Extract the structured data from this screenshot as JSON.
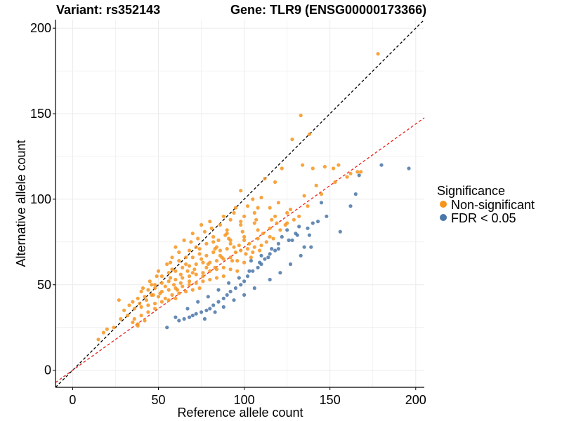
{
  "titles": {
    "variant": "Variant: rs352143",
    "gene": "Gene: TLR9 (ENSG00000173366)"
  },
  "colors": {
    "nonsig": "#F7941D",
    "sig": "#4A76A8",
    "identity_line": "#000000",
    "fit_line": "#E8231E",
    "grid": "#EBEBEB"
  },
  "chart_data": {
    "type": "scatter",
    "xlabel": "Reference allele count",
    "ylabel": "Alternative allele count",
    "xlim": [
      -10,
      205
    ],
    "ylim": [
      -10,
      205
    ],
    "xticks": [
      0,
      50,
      100,
      150,
      200
    ],
    "yticks": [
      0,
      50,
      100,
      150,
      200
    ],
    "grid": true,
    "legend": {
      "title": "Significance",
      "position": "right",
      "entries": [
        "Non-significant",
        "FDR < 0.05"
      ]
    },
    "reference_lines": [
      {
        "name": "identity",
        "slope": 1.0,
        "intercept": 0,
        "style": "dashed",
        "color": "#000000"
      },
      {
        "name": "fit",
        "slope": 0.72,
        "intercept": 0,
        "style": "dashed",
        "color": "#E8231E"
      }
    ],
    "series": [
      {
        "name": "Non-significant",
        "color": "#F7941D",
        "points": [
          [
            178,
            185
          ],
          [
            133,
            149
          ],
          [
            138,
            138
          ],
          [
            128,
            135
          ],
          [
            134,
            120
          ],
          [
            140,
            118
          ],
          [
            147,
            119
          ],
          [
            152,
            118
          ],
          [
            155,
            120
          ],
          [
            162,
            115
          ],
          [
            166,
            116
          ],
          [
            122,
            118
          ],
          [
            118,
            110
          ],
          [
            112,
            112
          ],
          [
            105,
            100
          ],
          [
            98,
            105
          ],
          [
            108,
            95
          ],
          [
            120,
            98
          ],
          [
            125,
            92
          ],
          [
            135,
            102
          ],
          [
            142,
            108
          ],
          [
            118,
            90
          ],
          [
            100,
            90
          ],
          [
            92,
            88
          ],
          [
            95,
            95
          ],
          [
            88,
            90
          ],
          [
            80,
            87
          ],
          [
            75,
            85
          ],
          [
            70,
            80
          ],
          [
            82,
            78
          ],
          [
            90,
            82
          ],
          [
            98,
            85
          ],
          [
            106,
            86
          ],
          [
            115,
            83
          ],
          [
            124,
            85
          ],
          [
            132,
            90
          ],
          [
            60,
            72
          ],
          [
            65,
            76
          ],
          [
            68,
            70
          ],
          [
            72,
            72
          ],
          [
            78,
            74
          ],
          [
            85,
            76
          ],
          [
            92,
            76
          ],
          [
            100,
            78
          ],
          [
            108,
            77
          ],
          [
            115,
            78
          ],
          [
            55,
            62
          ],
          [
            58,
            66
          ],
          [
            62,
            64
          ],
          [
            66,
            66
          ],
          [
            70,
            66
          ],
          [
            74,
            68
          ],
          [
            78,
            67
          ],
          [
            82,
            69
          ],
          [
            86,
            70
          ],
          [
            90,
            71
          ],
          [
            94,
            72
          ],
          [
            98,
            70
          ],
          [
            102,
            71
          ],
          [
            106,
            72
          ],
          [
            110,
            73
          ],
          [
            50,
            58
          ],
          [
            52,
            55
          ],
          [
            56,
            57
          ],
          [
            60,
            58
          ],
          [
            64,
            60
          ],
          [
            68,
            61
          ],
          [
            72,
            62
          ],
          [
            76,
            63
          ],
          [
            80,
            63
          ],
          [
            84,
            64
          ],
          [
            88,
            65
          ],
          [
            92,
            66
          ],
          [
            96,
            64
          ],
          [
            100,
            63
          ],
          [
            104,
            66
          ],
          [
            45,
            52
          ],
          [
            48,
            50
          ],
          [
            52,
            51
          ],
          [
            56,
            52
          ],
          [
            60,
            53
          ],
          [
            64,
            54
          ],
          [
            68,
            55
          ],
          [
            72,
            56
          ],
          [
            76,
            57
          ],
          [
            80,
            58
          ],
          [
            84,
            59
          ],
          [
            88,
            60
          ],
          [
            92,
            59
          ],
          [
            96,
            58
          ],
          [
            40,
            46
          ],
          [
            44,
            47
          ],
          [
            48,
            48
          ],
          [
            52,
            46
          ],
          [
            56,
            47
          ],
          [
            60,
            48
          ],
          [
            64,
            49
          ],
          [
            68,
            50
          ],
          [
            72,
            51
          ],
          [
            76,
            52
          ],
          [
            80,
            53
          ],
          [
            84,
            54
          ],
          [
            88,
            55
          ],
          [
            35,
            40
          ],
          [
            38,
            42
          ],
          [
            42,
            43
          ],
          [
            46,
            44
          ],
          [
            50,
            43
          ],
          [
            54,
            42
          ],
          [
            58,
            44
          ],
          [
            62,
            45
          ],
          [
            66,
            46
          ],
          [
            70,
            47
          ],
          [
            74,
            48
          ],
          [
            30,
            35
          ],
          [
            33,
            38
          ],
          [
            36,
            36
          ],
          [
            40,
            37
          ],
          [
            44,
            38
          ],
          [
            48,
            39
          ],
          [
            52,
            40
          ],
          [
            56,
            41
          ],
          [
            60,
            42
          ],
          [
            27,
            41
          ],
          [
            28,
            30
          ],
          [
            32,
            32
          ],
          [
            36,
            30
          ],
          [
            40,
            32
          ],
          [
            44,
            34
          ],
          [
            48,
            36
          ],
          [
            35,
            28
          ],
          [
            38,
            27
          ],
          [
            42,
            29
          ],
          [
            38,
            26
          ],
          [
            24,
            25
          ],
          [
            20,
            24
          ],
          [
            18,
            22
          ],
          [
            15,
            18
          ],
          [
            46,
            50
          ],
          [
            63,
            51
          ],
          [
            71,
            59
          ],
          [
            79,
            62
          ],
          [
            87,
            66
          ],
          [
            95,
            69
          ],
          [
            103,
            74
          ],
          [
            111,
            80
          ],
          [
            119,
            86
          ],
          [
            127,
            94
          ],
          [
            83,
            71
          ],
          [
            91,
            77
          ],
          [
            99,
            81
          ],
          [
            107,
            88
          ],
          [
            115,
            95
          ],
          [
            75,
            65
          ],
          [
            67,
            58
          ],
          [
            59,
            50
          ],
          [
            51,
            45
          ],
          [
            43,
            41
          ],
          [
            86,
            85
          ],
          [
            94,
            92
          ],
          [
            102,
            96
          ],
          [
            110,
            101
          ],
          [
            69,
            75
          ],
          [
            77,
            81
          ],
          [
            57,
            63
          ],
          [
            49,
            55
          ],
          [
            41,
            48
          ],
          [
            62,
            69
          ],
          [
            73,
            77
          ],
          [
            81,
            83
          ],
          [
            89,
            79
          ],
          [
            97,
            73
          ],
          [
            105,
            69
          ],
          [
            113,
            75
          ],
          [
            121,
            82
          ],
          [
            129,
            88
          ],
          [
            137,
            96
          ],
          [
            145,
            103
          ],
          [
            153,
            110
          ],
          [
            160,
            113
          ],
          [
            168,
            116
          ],
          [
            83,
            60
          ],
          [
            76,
            55
          ],
          [
            68,
            52
          ],
          [
            61,
            47
          ],
          [
            54,
            49
          ],
          [
            47,
            44
          ],
          [
            39,
            39
          ],
          [
            93,
            64
          ],
          [
            101,
            68
          ],
          [
            109,
            70
          ],
          [
            117,
            77
          ],
          [
            125,
            86
          ],
          [
            86,
            67
          ],
          [
            78,
            60
          ],
          [
            70,
            57
          ],
          [
            63,
            56
          ],
          [
            57,
            54
          ],
          [
            74,
            71
          ],
          [
            82,
            75
          ],
          [
            90,
            80
          ],
          [
            98,
            87
          ],
          [
            106,
            92
          ],
          [
            66,
            62
          ],
          [
            58,
            59
          ],
          [
            84,
            72
          ],
          [
            92,
            74
          ],
          [
            100,
            76
          ],
          [
            108,
            82
          ],
          [
            116,
            88
          ]
        ]
      },
      {
        "name": "FDR < 0.05",
        "color": "#4A76A8",
        "points": [
          [
            196,
            118
          ],
          [
            180,
            120
          ],
          [
            167,
            114
          ],
          [
            165,
            103
          ],
          [
            162,
            96
          ],
          [
            156,
            81
          ],
          [
            148,
            90
          ],
          [
            145,
            98
          ],
          [
            140,
            86
          ],
          [
            138,
            79
          ],
          [
            135,
            72
          ],
          [
            132,
            84
          ],
          [
            130,
            80
          ],
          [
            128,
            76
          ],
          [
            125,
            82
          ],
          [
            122,
            78
          ],
          [
            120,
            74
          ],
          [
            118,
            70
          ],
          [
            115,
            68
          ],
          [
            112,
            65
          ],
          [
            110,
            62
          ],
          [
            108,
            60
          ],
          [
            105,
            58
          ],
          [
            102,
            55
          ],
          [
            100,
            52
          ],
          [
            98,
            50
          ],
          [
            95,
            48
          ],
          [
            92,
            46
          ],
          [
            90,
            44
          ],
          [
            88,
            42
          ],
          [
            85,
            40
          ],
          [
            82,
            38
          ],
          [
            80,
            36
          ],
          [
            78,
            35
          ],
          [
            75,
            34
          ],
          [
            72,
            33
          ],
          [
            70,
            32
          ],
          [
            68,
            31
          ],
          [
            65,
            30
          ],
          [
            62,
            29
          ],
          [
            55,
            25
          ],
          [
            60,
            31
          ],
          [
            67,
            36
          ],
          [
            73,
            40
          ],
          [
            79,
            43
          ],
          [
            85,
            47
          ],
          [
            91,
            51
          ],
          [
            97,
            54
          ],
          [
            103,
            58
          ],
          [
            109,
            63
          ],
          [
            114,
            66
          ],
          [
            120,
            71
          ],
          [
            126,
            76
          ],
          [
            131,
            79
          ],
          [
            137,
            83
          ],
          [
            143,
            87
          ],
          [
            106,
            48
          ],
          [
            100,
            44
          ],
          [
            94,
            41
          ],
          [
            88,
            37
          ],
          [
            83,
            34
          ],
          [
            77,
            30
          ],
          [
            115,
            53
          ],
          [
            121,
            57
          ],
          [
            127,
            62
          ],
          [
            133,
            67
          ],
          [
            139,
            72
          ],
          [
            104,
            64
          ],
          [
            110,
            67
          ],
          [
            116,
            71
          ]
        ]
      }
    ]
  }
}
